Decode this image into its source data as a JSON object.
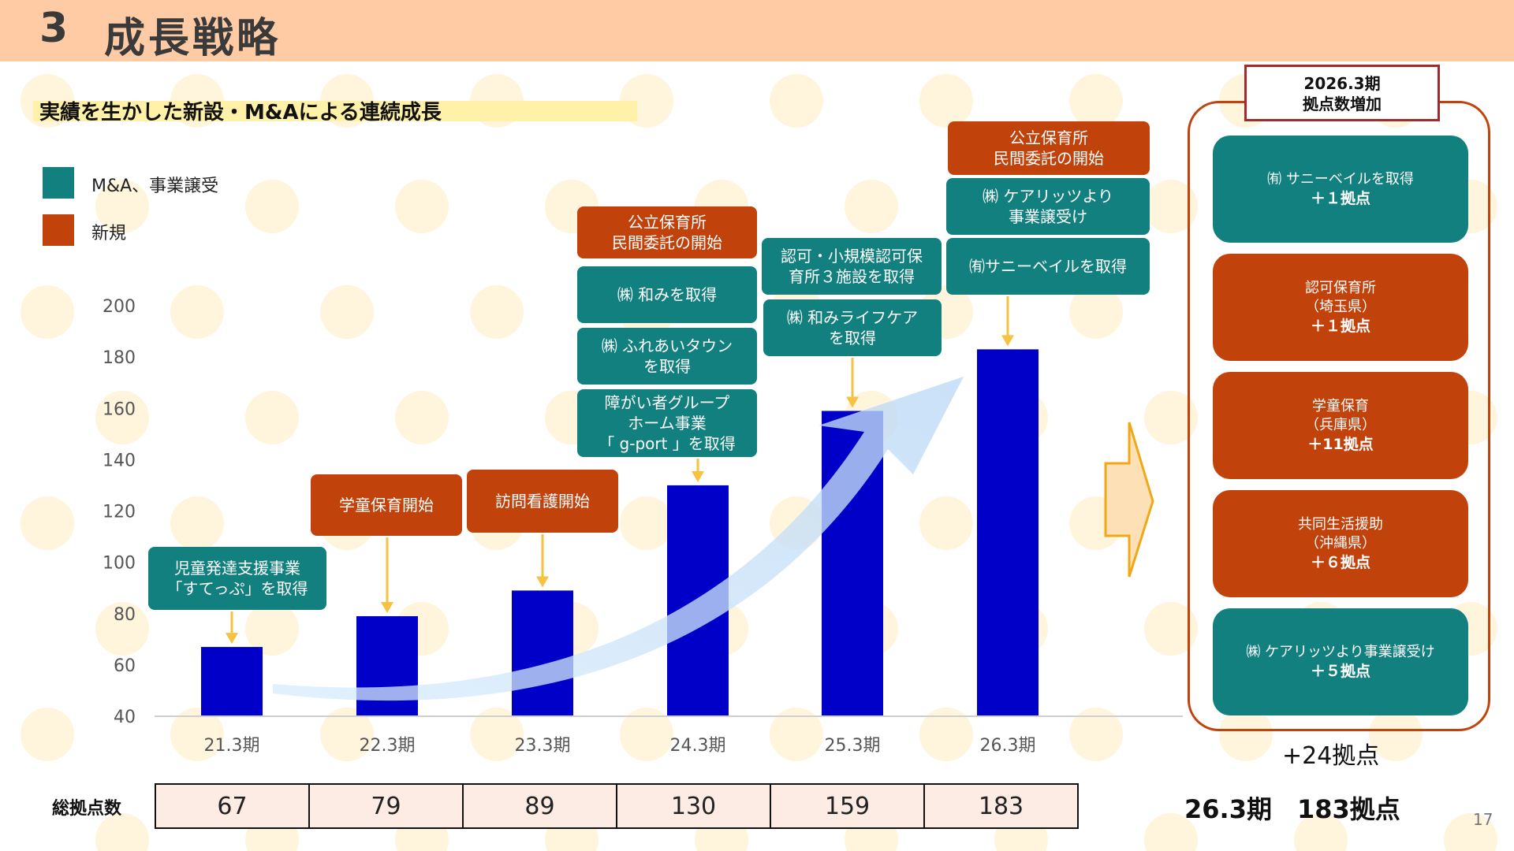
{
  "header": {
    "number": "3",
    "title": "成長戦略"
  },
  "subtitle": "実績を生かした新設・M&Aによる連続成長",
  "legend": [
    {
      "label": "M&A、事業譲受",
      "color": "#12807f"
    },
    {
      "label": "新規",
      "color": "#c2420c"
    }
  ],
  "chart_data": {
    "type": "bar",
    "categories": [
      "21.3期",
      "22.3期",
      "23.3期",
      "24.3期",
      "25.3期",
      "26.3期"
    ],
    "values": [
      67,
      79,
      89,
      130,
      159,
      183
    ],
    "yticks": [
      40,
      60,
      80,
      100,
      120,
      140,
      160,
      180,
      200
    ],
    "ylim": [
      40,
      200
    ],
    "bar_color": "#0000c8",
    "grid": false
  },
  "annotations": [
    {
      "text": "児童発達支援事業\n「すてっぷ」を取得",
      "type": "ma",
      "category": "21.3期"
    },
    {
      "text": "学童保育開始",
      "type": "new",
      "category": "22.3期"
    },
    {
      "text": "訪問看護開始",
      "type": "new",
      "category": "23.3期"
    },
    {
      "text": "公立保育所\n民間委託の開始",
      "type": "new",
      "category": "24.3期"
    },
    {
      "text": "㈱ 和みを取得",
      "type": "ma",
      "category": "24.3期"
    },
    {
      "text": "㈱ ふれあいタウン\nを取得",
      "type": "ma",
      "category": "24.3期"
    },
    {
      "text": "障がい者グループ\nホーム事業\n「 g-port 」を取得",
      "type": "ma",
      "category": "24.3期"
    },
    {
      "text": "認可・小規模認可保\n育所３施設を取得",
      "type": "ma",
      "category": "25.3期"
    },
    {
      "text": "㈱ 和みライフケア\nを取得",
      "type": "ma",
      "category": "25.3期"
    },
    {
      "text": "公立保育所\n民間委託の開始",
      "type": "new",
      "category": "26.3期"
    },
    {
      "text": "㈱ ケアリッツより\n事業譲受け",
      "type": "ma",
      "category": "26.3期"
    },
    {
      "text": "㈲サニーベイルを取得",
      "type": "ma",
      "category": "26.3期"
    }
  ],
  "table": {
    "label": "総拠点数",
    "values": [
      "67",
      "79",
      "89",
      "130",
      "159",
      "183"
    ]
  },
  "right_panel": {
    "title": "2026.3期\n拠点数増加",
    "items": [
      {
        "line1": "㈲ サニーベイルを取得",
        "line2": "＋１拠点",
        "type": "ma"
      },
      {
        "line1": "認可保育所\n（埼玉県）",
        "line2": "＋１拠点",
        "type": "new"
      },
      {
        "line1": "学童保育\n（兵庫県）",
        "line2": "＋11拠点",
        "type": "new"
      },
      {
        "line1": "共同生活援助\n（沖縄県）",
        "line2": "＋６拠点",
        "type": "new"
      },
      {
        "line1": "㈱ ケアリッツより事業譲受け",
        "line2": "＋５拠点",
        "type": "ma"
      }
    ],
    "increase": "+24拠点"
  },
  "summary": "26.3期　183拠点",
  "page_number": "17",
  "colors": {
    "ma": "#12807f",
    "new": "#c2420c",
    "arrow_yellow": "#f5c242",
    "header_bg": "#ffcba4"
  }
}
